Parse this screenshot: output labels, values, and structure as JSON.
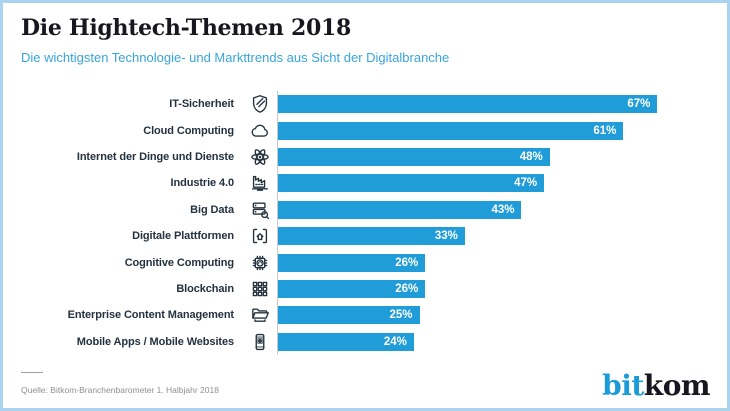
{
  "header": {
    "title": "Die Hightech-Themen 2018",
    "subtitle": "Die wichtigsten Technologie- und Markttrends aus Sicht der Digitalbranche"
  },
  "chart_data": {
    "type": "bar",
    "orientation": "horizontal",
    "title": "Die Hightech-Themen 2018",
    "subtitle": "Die wichtigsten Technologie- und Markttrends aus Sicht der Digitalbranche",
    "unit": "%",
    "xlim": [
      0,
      77
    ],
    "grid": false,
    "legend": false,
    "bar_color": "#209dd8",
    "value_label_position": "inside-end",
    "categories": [
      "IT-Sicherheit",
      "Cloud Computing",
      "Internet der Dinge und Dienste",
      "Industrie 4.0",
      "Big Data",
      "Digitale Plattformen",
      "Cognitive Computing",
      "Blockchain",
      "Enterprise Content Management",
      "Mobile Apps / Mobile Websites"
    ],
    "values": [
      67,
      61,
      48,
      47,
      43,
      33,
      26,
      26,
      25,
      24
    ],
    "icons": [
      "shield-icon",
      "cloud-icon",
      "atom-icon",
      "factory-chart-icon",
      "database-search-icon",
      "platform-home-icon",
      "chip-brain-icon",
      "blockchain-icon",
      "folder-icon",
      "smartphone-icon"
    ]
  },
  "footer": {
    "source": "Quelle: Bitkom-Branchenbarometer 1. Halbjahr 2018",
    "logo": {
      "prefix": "bit",
      "suffix": "kom"
    }
  },
  "colors": {
    "accent_blue": "#209dd8",
    "subtitle_blue": "#38a5dc",
    "title_dark": "#17171f",
    "frame_light_blue": "#a9d3ee",
    "source_gray": "#8b9095",
    "axis_line_gray": "#c9c9c9"
  }
}
